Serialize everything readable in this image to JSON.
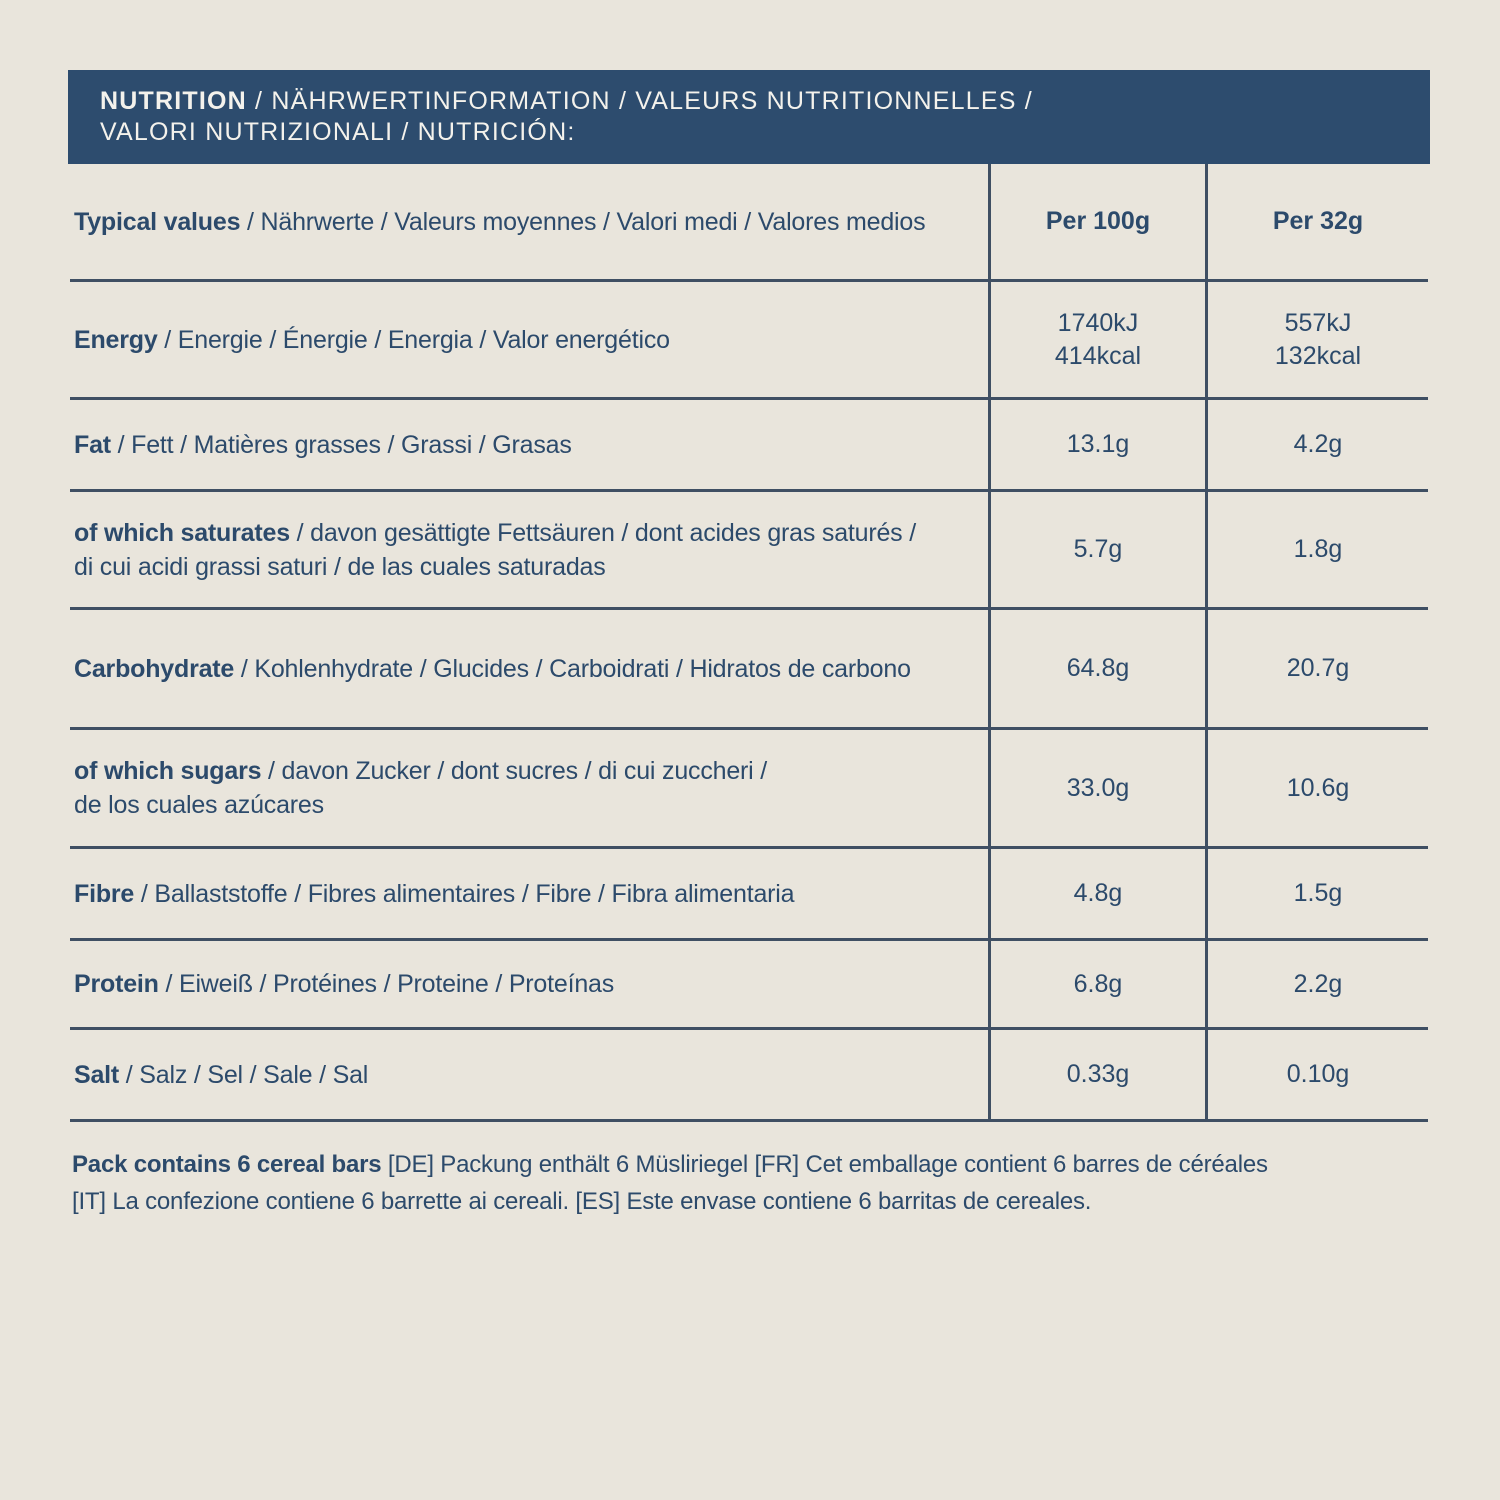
{
  "page": {
    "background_color": "#e9e5dc",
    "accent_blue": "#2d4c6e",
    "text_color": "#2c4a6b",
    "rule_color": "#3f4f63"
  },
  "header": {
    "title_bold": "NUTRITION",
    "title_rest": " / NÄHRWERTINFORMATION / VALEURS NUTRITIONNELLES /",
    "title_line2": "VALORI NUTRIZIONALI / NUTRICIÓN:"
  },
  "table": {
    "columns": {
      "label_header_bold": "Typical values",
      "label_header_rest": " / Nährwerte / Valeurs moyennes / Valori medi / Valores medios",
      "per_100g": "Per 100g",
      "per_32g": "Per 32g"
    },
    "rows": [
      {
        "term": "Energy",
        "translations": " / Energie / Énergie / Energia / Valor energético",
        "per_100g": "1740kJ\n414kcal",
        "per_32g": "557kJ\n132kcal"
      },
      {
        "term": "Fat",
        "translations": " / Fett / Matières grasses / Grassi / Grasas",
        "per_100g": "13.1g",
        "per_32g": "4.2g"
      },
      {
        "term": "of which saturates",
        "translations": " / davon gesättigte Fettsäuren / dont acides gras saturés /",
        "line2": "di cui acidi grassi saturi / de las cuales saturadas",
        "per_100g": "5.7g",
        "per_32g": "1.8g"
      },
      {
        "term": "Carbohydrate",
        "translations": " / Kohlenhydrate / Glucides / Carboidrati / Hidratos de carbono",
        "per_100g": "64.8g",
        "per_32g": "20.7g"
      },
      {
        "term": "of which sugars",
        "translations": " / davon Zucker / dont sucres / di cui zuccheri /",
        "line2": "de los cuales azúcares",
        "per_100g": "33.0g",
        "per_32g": "10.6g"
      },
      {
        "term": "Fibre",
        "translations": " / Ballaststoffe / Fibres alimentaires / Fibre / Fibra alimentaria",
        "per_100g": "4.8g",
        "per_32g": "1.5g"
      },
      {
        "term": "Protein",
        "translations": " / Eiweiß / Protéines / Proteine / Proteínas",
        "per_100g": "6.8g",
        "per_32g": "2.2g"
      },
      {
        "term": "Salt",
        "translations": " / Salz / Sel / Sale / Sal",
        "per_100g": "0.33g",
        "per_32g": "0.10g"
      }
    ]
  },
  "footer": {
    "bold": "Pack contains 6 cereal bars",
    "rest": " [DE] Packung enthält 6 Müsliriegel [FR] Cet emballage contient 6 barres de céréales",
    "line2": "[IT] La confezione contiene 6 barrette ai cereali. [ES] Este envase contiene 6 barritas de cereales."
  }
}
